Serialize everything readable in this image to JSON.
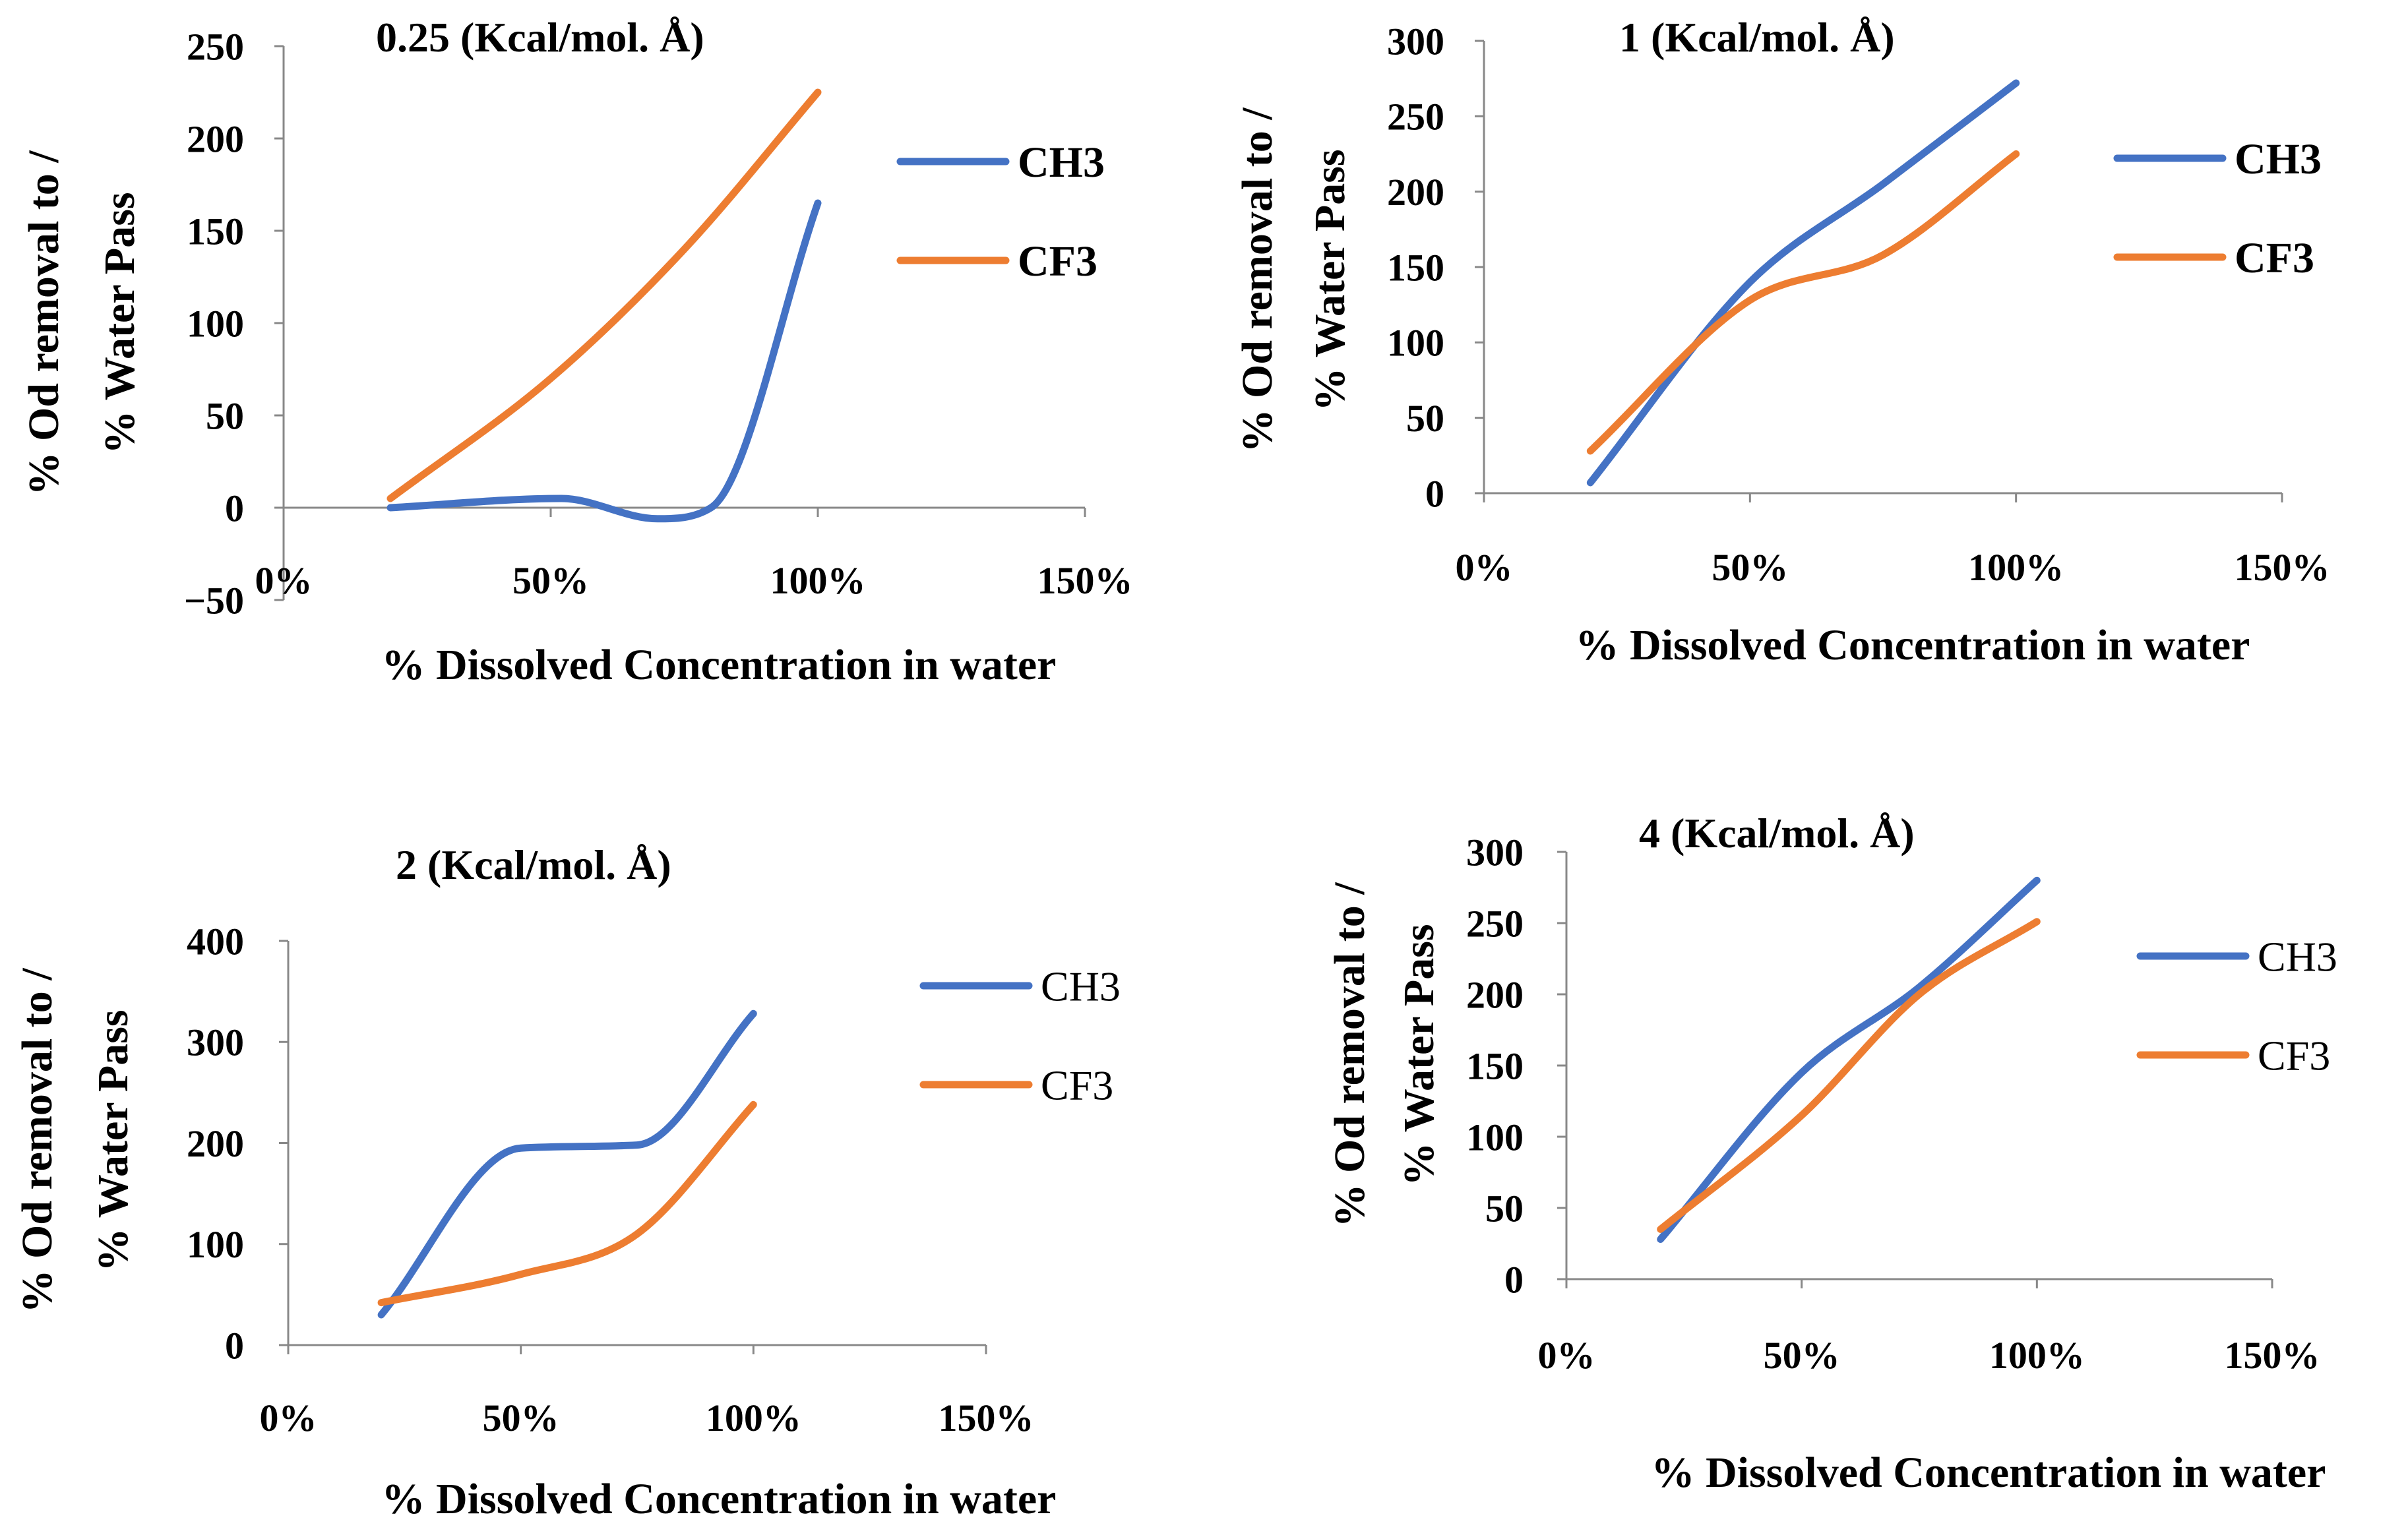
{
  "series_colors": {
    "CH3": "#4472C4",
    "CF3": "#ED7D31"
  },
  "chart_data": [
    {
      "type": "line",
      "title": "0.25 (Kcal/mol. Å)",
      "xlabel": "% Dissolved Concentration in water",
      "ylabel_line1": "% Od removal to /",
      "ylabel_line2": "% Water Pass",
      "xlim": [
        0,
        1.5
      ],
      "ylim": [
        -50,
        250
      ],
      "xticks": [
        "0%",
        "50%",
        "100%",
        "150%"
      ],
      "yticks": [
        "250",
        "200",
        "150",
        "100",
        "50",
        "0",
        "−50"
      ],
      "legend_labels": [
        "CH3",
        "CF3"
      ],
      "series": [
        {
          "name": "CH3",
          "x": [
            0.2,
            0.52,
            0.7,
            0.8,
            1.0
          ],
          "y": [
            0,
            5,
            -6,
            0,
            165
          ]
        },
        {
          "name": "CF3",
          "x": [
            0.2,
            0.5,
            0.75,
            1.0
          ],
          "y": [
            5,
            70,
            140,
            225
          ]
        }
      ]
    },
    {
      "type": "line",
      "title": "1  (Kcal/mol. Å)",
      "xlabel": "% Dissolved Concentration in water",
      "ylabel_line1": "% Od removal to /",
      "ylabel_line2": "% Water Pass",
      "xlim": [
        0,
        1.5
      ],
      "ylim": [
        0,
        300
      ],
      "xticks": [
        "0%",
        "50%",
        "100%",
        "150%"
      ],
      "yticks": [
        "300",
        "250",
        "200",
        "150",
        "100",
        "50",
        "0"
      ],
      "legend_labels": [
        "CH3",
        "CF3"
      ],
      "series": [
        {
          "name": "CH3",
          "x": [
            0.2,
            0.5,
            0.75,
            1.0
          ],
          "y": [
            7,
            140,
            205,
            272
          ]
        },
        {
          "name": "CF3",
          "x": [
            0.2,
            0.5,
            0.75,
            1.0
          ],
          "y": [
            28,
            128,
            158,
            225
          ]
        }
      ]
    },
    {
      "type": "line",
      "title": "2  (Kcal/mol. Å)",
      "xlabel": "% Dissolved Concentration in water",
      "ylabel_line1": "% Od removal to /",
      "ylabel_line2": "% Water Pass",
      "xlim": [
        0,
        1.5
      ],
      "ylim": [
        0,
        400
      ],
      "xticks": [
        "0%",
        "50%",
        "100%",
        "150%"
      ],
      "yticks": [
        "400",
        "300",
        "200",
        "100",
        "0"
      ],
      "legend_labels": [
        "CH3",
        "CF3"
      ],
      "series": [
        {
          "name": "CH3",
          "x": [
            0.2,
            0.5,
            0.75,
            1.0
          ],
          "y": [
            30,
            195,
            198,
            328
          ]
        },
        {
          "name": "CF3",
          "x": [
            0.2,
            0.5,
            0.75,
            1.0
          ],
          "y": [
            42,
            70,
            110,
            238
          ]
        }
      ]
    },
    {
      "type": "line",
      "title": "4  (Kcal/mol. Å)",
      "xlabel": "% Dissolved Concentration in water",
      "ylabel_line1": "% Od removal to /",
      "ylabel_line2": "% Water Pass",
      "xlim": [
        0,
        1.5
      ],
      "ylim": [
        0,
        300
      ],
      "xticks": [
        "0%",
        "50%",
        "100%",
        "150%"
      ],
      "yticks": [
        "300",
        "250",
        "200",
        "150",
        "100",
        "50",
        "0"
      ],
      "legend_labels": [
        "CH3",
        "CF3"
      ],
      "series": [
        {
          "name": "CH3",
          "x": [
            0.2,
            0.5,
            0.75,
            1.0
          ],
          "y": [
            28,
            145,
            205,
            280
          ]
        },
        {
          "name": "CF3",
          "x": [
            0.2,
            0.5,
            0.75,
            1.0
          ],
          "y": [
            35,
            115,
            200,
            251
          ]
        }
      ]
    }
  ]
}
